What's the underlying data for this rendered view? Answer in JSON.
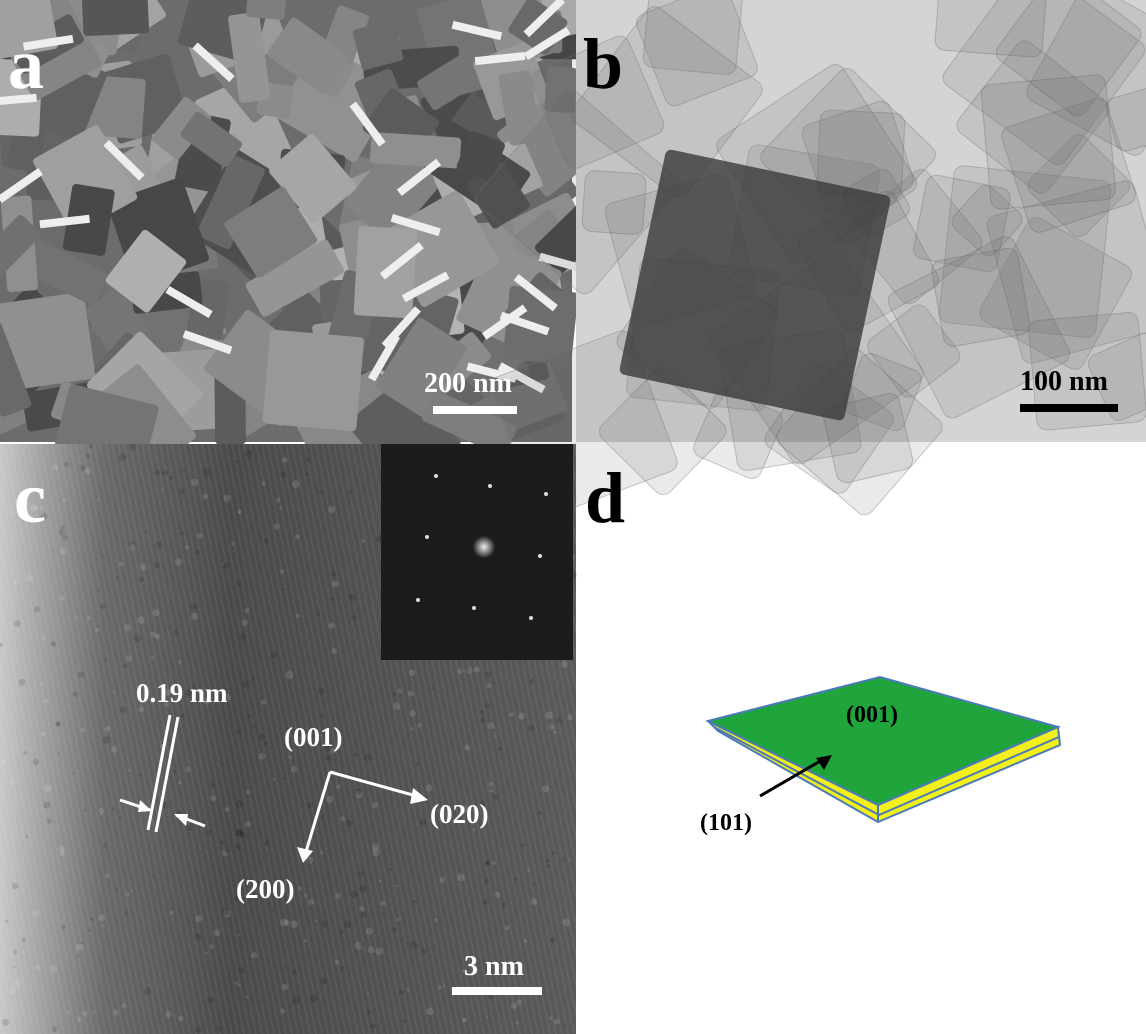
{
  "panels": [
    {
      "label": "a",
      "scale_bar": "200 nm"
    },
    {
      "label": "b",
      "scale_bar": "100 nm"
    },
    {
      "label": "c",
      "scale_bar": "3 nm",
      "annotations": [
        "0.19 nm",
        "(001)",
        "(020)",
        "(200)"
      ]
    },
    {
      "label": "d",
      "annotations": [
        "(001)",
        "(101)"
      ]
    }
  ]
}
